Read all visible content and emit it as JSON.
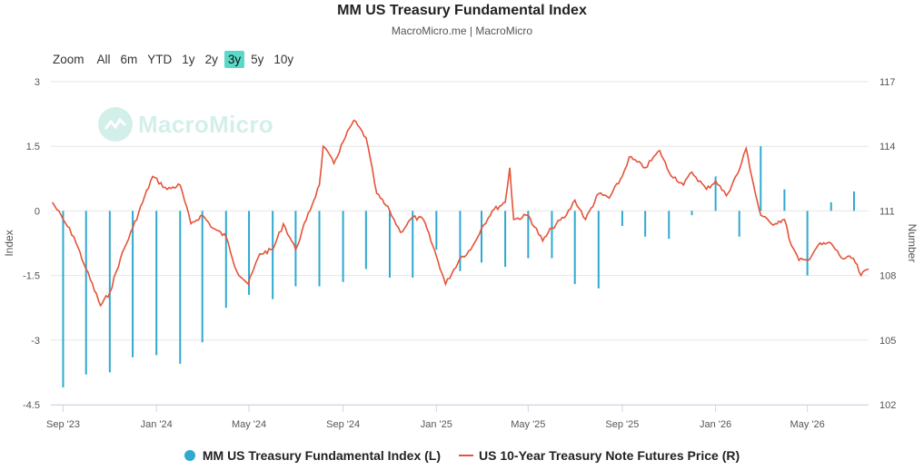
{
  "title": "MM US Treasury Fundamental Index",
  "subtitle": "MacroMicro.me | MacroMicro",
  "watermark_text": "MacroMicro",
  "zoom": {
    "label": "Zoom",
    "buttons": [
      "All",
      "6m",
      "YTD",
      "1y",
      "2y",
      "3y",
      "5y",
      "10y"
    ],
    "active": "3y"
  },
  "legend": {
    "series1": "MM US Treasury Fundamental Index (L)",
    "series2": "US 10-Year Treasury Note Futures Price (R)"
  },
  "colors": {
    "bars": "#2fa9cf",
    "line": "#e5533a",
    "accent": "#5ad9c7"
  },
  "chart_data": {
    "type": "bar+line",
    "x_range": [
      "2023-08-16",
      "2026-07-20"
    ],
    "x_ticks": [
      {
        "date": "2023-09-01",
        "label": "Sep '23"
      },
      {
        "date": "2024-01-01",
        "label": "Jan '24"
      },
      {
        "date": "2024-05-01",
        "label": "May '24"
      },
      {
        "date": "2024-09-01",
        "label": "Sep '24"
      },
      {
        "date": "2025-01-01",
        "label": "Jan '25"
      },
      {
        "date": "2025-05-01",
        "label": "May '25"
      },
      {
        "date": "2025-09-01",
        "label": "Sep '25"
      },
      {
        "date": "2026-01-01",
        "label": "Jan '26"
      },
      {
        "date": "2026-05-01",
        "label": "May '26"
      }
    ],
    "y_left": {
      "label": "Index",
      "min": -4.5,
      "max": 3,
      "ticks": [
        3,
        1.5,
        0,
        -1.5,
        -3,
        -4.5
      ],
      "tick_labels": [
        "3",
        "1.5",
        "0",
        "-1.5",
        "-3",
        "-4.5"
      ]
    },
    "y_right": {
      "label": "Number",
      "min": 102,
      "max": 117,
      "ticks": [
        117,
        114,
        111,
        108,
        105,
        102
      ],
      "tick_labels": [
        "117",
        "114",
        "111",
        "108",
        "105",
        "102"
      ]
    },
    "series_bars": {
      "name": "MM US Treasury Fundamental Index (L)",
      "axis": "left",
      "data": [
        [
          "2023-09-01",
          -4.1
        ],
        [
          "2023-10-01",
          -3.8
        ],
        [
          "2023-11-01",
          -3.75
        ],
        [
          "2023-12-01",
          -3.4
        ],
        [
          "2024-01-01",
          -3.35
        ],
        [
          "2024-02-01",
          -3.55
        ],
        [
          "2024-03-01",
          -3.05
        ],
        [
          "2024-04-01",
          -2.25
        ],
        [
          "2024-05-01",
          -1.95
        ],
        [
          "2024-06-01",
          -2.05
        ],
        [
          "2024-07-01",
          -1.75
        ],
        [
          "2024-08-01",
          -1.75
        ],
        [
          "2024-09-01",
          -1.65
        ],
        [
          "2024-10-01",
          -1.35
        ],
        [
          "2024-11-01",
          -1.55
        ],
        [
          "2024-12-01",
          -1.55
        ],
        [
          "2025-01-01",
          -0.9
        ],
        [
          "2025-02-01",
          -1.4
        ],
        [
          "2025-03-01",
          -1.2
        ],
        [
          "2025-04-01",
          -1.3
        ],
        [
          "2025-05-01",
          -1.1
        ],
        [
          "2025-06-01",
          -1.1
        ],
        [
          "2025-07-01",
          -1.7
        ],
        [
          "2025-08-01",
          -1.8
        ],
        [
          "2025-09-01",
          -0.35
        ],
        [
          "2025-10-01",
          -0.6
        ],
        [
          "2025-11-01",
          -0.65
        ],
        [
          "2025-12-01",
          -0.1
        ],
        [
          "2026-01-01",
          0.8
        ],
        [
          "2026-02-01",
          -0.6
        ],
        [
          "2026-03-01",
          1.5
        ],
        [
          "2026-04-01",
          0.5
        ],
        [
          "2026-05-01",
          -1.5
        ],
        [
          "2026-06-01",
          0.2
        ],
        [
          "2026-07-01",
          0.45
        ]
      ]
    },
    "series_line": {
      "name": "US 10-Year Treasury Note Futures Price (R)",
      "axis": "right",
      "data": [
        [
          "2023-08-18",
          111.4
        ],
        [
          "2023-09-01",
          110.6
        ],
        [
          "2023-09-15",
          109.8
        ],
        [
          "2023-10-01",
          108.3
        ],
        [
          "2023-10-20",
          106.6
        ],
        [
          "2023-11-01",
          107.2
        ],
        [
          "2023-11-15",
          108.8
        ],
        [
          "2023-12-01",
          110.2
        ],
        [
          "2023-12-27",
          112.6
        ],
        [
          "2024-01-15",
          112.0
        ],
        [
          "2024-02-01",
          112.2
        ],
        [
          "2024-02-15",
          110.4
        ],
        [
          "2024-03-01",
          110.8
        ],
        [
          "2024-03-15",
          110.2
        ],
        [
          "2024-04-01",
          109.8
        ],
        [
          "2024-04-15",
          108.2
        ],
        [
          "2024-04-30",
          107.6
        ],
        [
          "2024-05-15",
          109.0
        ],
        [
          "2024-06-01",
          109.2
        ],
        [
          "2024-06-15",
          110.4
        ],
        [
          "2024-07-01",
          109.2
        ],
        [
          "2024-07-15",
          110.6
        ],
        [
          "2024-08-01",
          112.2
        ],
        [
          "2024-08-06",
          114.0
        ],
        [
          "2024-08-20",
          113.2
        ],
        [
          "2024-09-01",
          114.2
        ],
        [
          "2024-09-15",
          115.2
        ],
        [
          "2024-10-01",
          114.4
        ],
        [
          "2024-10-15",
          111.8
        ],
        [
          "2024-11-01",
          111.0
        ],
        [
          "2024-11-15",
          110.0
        ],
        [
          "2024-12-01",
          110.7
        ],
        [
          "2024-12-15",
          110.6
        ],
        [
          "2025-01-01",
          108.9
        ],
        [
          "2025-01-13",
          107.6
        ],
        [
          "2025-02-01",
          108.8
        ],
        [
          "2025-02-15",
          109.2
        ],
        [
          "2025-03-01",
          110.2
        ],
        [
          "2025-03-15",
          111.0
        ],
        [
          "2025-04-01",
          111.4
        ],
        [
          "2025-04-07",
          113.0
        ],
        [
          "2025-04-12",
          110.6
        ],
        [
          "2025-05-01",
          110.8
        ],
        [
          "2025-05-20",
          109.6
        ],
        [
          "2025-06-01",
          110.2
        ],
        [
          "2025-06-20",
          110.8
        ],
        [
          "2025-07-01",
          111.5
        ],
        [
          "2025-07-15",
          110.6
        ],
        [
          "2025-08-01",
          111.8
        ],
        [
          "2025-08-15",
          111.6
        ],
        [
          "2025-09-01",
          112.6
        ],
        [
          "2025-09-10",
          113.5
        ],
        [
          "2025-10-01",
          113.0
        ],
        [
          "2025-10-20",
          113.8
        ],
        [
          "2025-11-01",
          112.8
        ],
        [
          "2025-11-20",
          112.2
        ],
        [
          "2025-12-01",
          112.8
        ],
        [
          "2025-12-20",
          112.0
        ],
        [
          "2026-01-01",
          112.4
        ],
        [
          "2026-01-15",
          111.7
        ],
        [
          "2026-02-01",
          112.9
        ],
        [
          "2026-02-10",
          113.9
        ],
        [
          "2026-02-22",
          111.8
        ],
        [
          "2026-03-01",
          110.8
        ],
        [
          "2026-03-15",
          110.4
        ],
        [
          "2026-04-01",
          110.6
        ],
        [
          "2026-04-10",
          109.4
        ],
        [
          "2026-04-20",
          108.7
        ],
        [
          "2026-05-01",
          108.7
        ],
        [
          "2026-05-15",
          109.4
        ],
        [
          "2026-06-01",
          109.5
        ],
        [
          "2026-06-15",
          108.8
        ],
        [
          "2026-06-30",
          108.8
        ],
        [
          "2026-07-10",
          108.0
        ],
        [
          "2026-07-20",
          108.3
        ]
      ]
    }
  }
}
